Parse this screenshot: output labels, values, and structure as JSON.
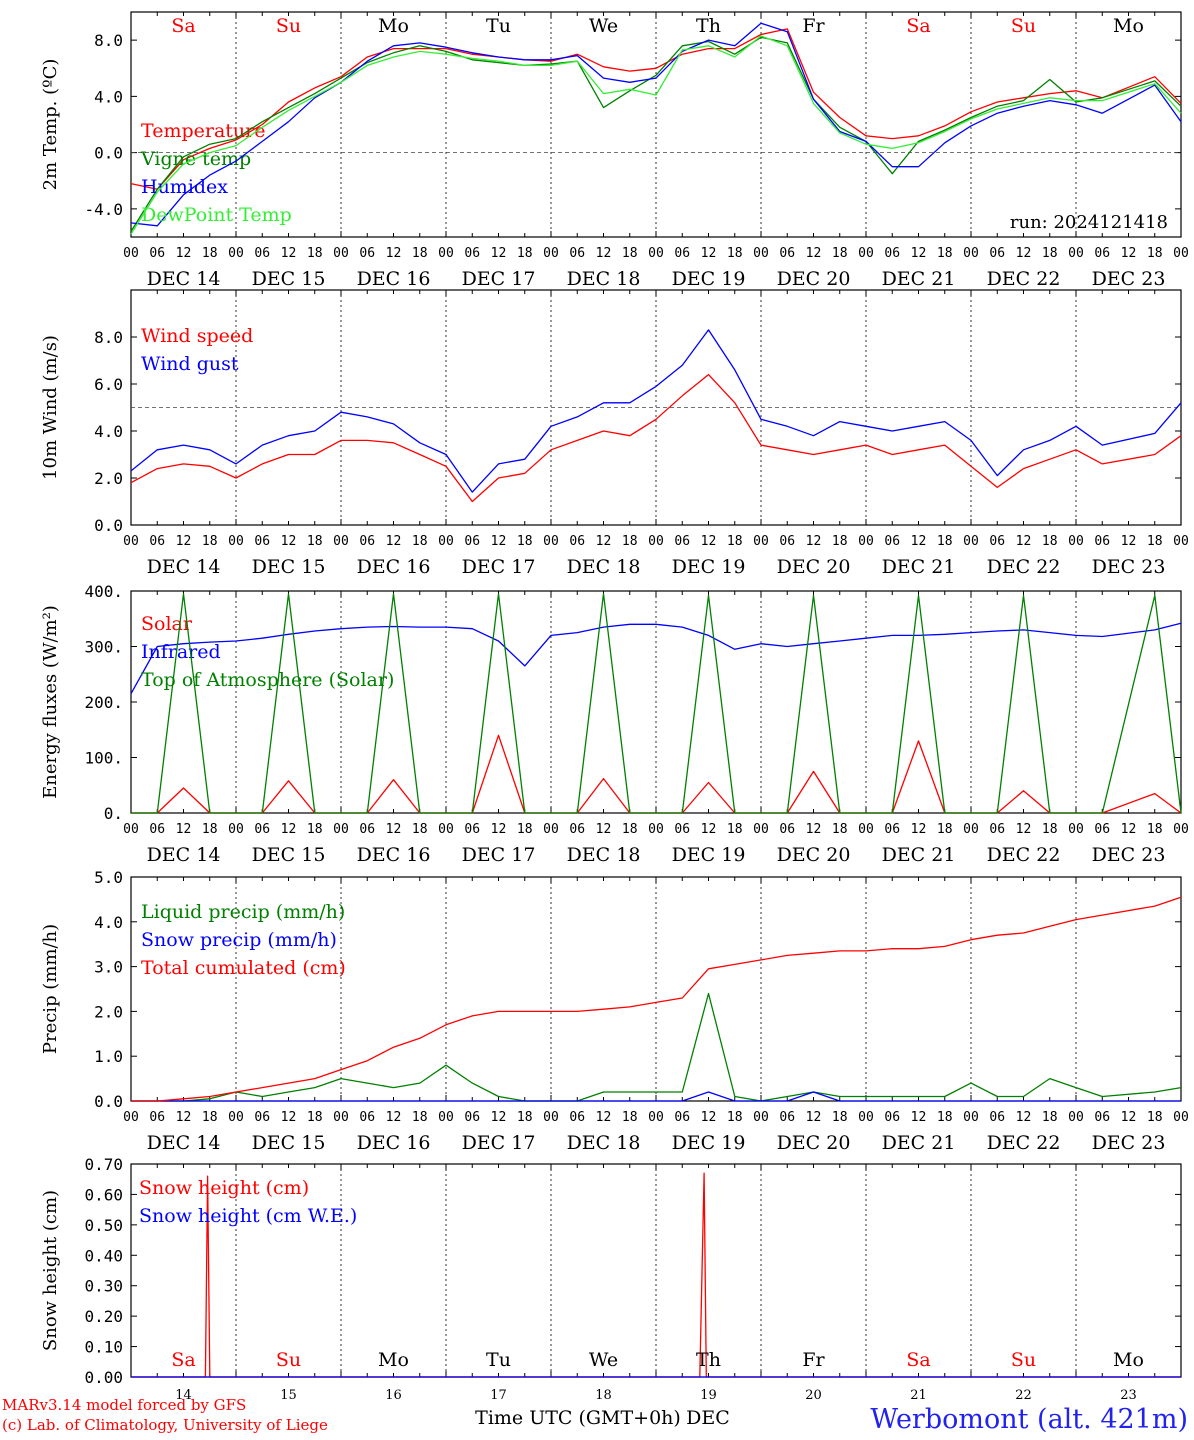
{
  "meta": {
    "run_label": "run: 2024121418",
    "credits_line1": "MARv3.14 model forced by GFS",
    "credits_line2": "(c) Lab. of Climatology, University of Liege",
    "x_axis_label": "Time UTC (GMT+0h)",
    "month_label": "DEC",
    "station": "Werbomont (alt. 421m)",
    "colors": {
      "red": "#ff0000",
      "green": "#008000",
      "blue": "#0000ff",
      "lightgreen": "#33ee33",
      "frame": "#000000"
    }
  },
  "axis": {
    "days": [
      "DEC 14",
      "DEC 15",
      "DEC 16",
      "DEC 17",
      "DEC 18",
      "DEC 19",
      "DEC 20",
      "DEC 21",
      "DEC 22",
      "DEC 23"
    ],
    "hour_ticks": [
      "00",
      "06",
      "12",
      "18"
    ],
    "end_tick": "00",
    "weekdays": [
      "Sa",
      "Su",
      "Mo",
      "Tu",
      "We",
      "Th",
      "Fr",
      "Sa",
      "Su",
      "Mo"
    ],
    "weekday_colors": [
      "#ff0000",
      "#ff0000",
      "#000000",
      "#000000",
      "#000000",
      "#000000",
      "#000000",
      "#ff0000",
      "#ff0000",
      "#000000"
    ],
    "bottom_day_numbers": [
      "14",
      "15",
      "16",
      "17",
      "18",
      "19",
      "20",
      "21",
      "22",
      "23"
    ]
  },
  "chart_data": [
    {
      "type": "line",
      "ylabel": "2m Temp. (ºC)",
      "ylim": [
        -6,
        10
      ],
      "yticks": [
        "-4.0",
        "0.0",
        "4.0",
        "8.0"
      ],
      "reference_line": 0,
      "x": [
        0,
        6,
        12,
        18,
        24,
        30,
        36,
        42,
        48,
        54,
        60,
        66,
        72,
        78,
        84,
        90,
        96,
        102,
        108,
        114,
        120,
        126,
        132,
        138,
        144,
        150,
        156,
        162,
        168,
        174,
        180,
        186,
        192,
        198,
        204,
        210,
        216,
        222,
        234,
        240
      ],
      "series": [
        {
          "name": "Temperature",
          "color": "#ff0000",
          "values": [
            -2.2,
            -2.6,
            -0.5,
            0.3,
            0.9,
            2.0,
            3.6,
            4.6,
            5.4,
            6.8,
            7.4,
            7.4,
            7.4,
            7.0,
            6.8,
            6.6,
            6.5,
            7.0,
            6.1,
            5.8,
            6.0,
            7.0,
            7.4,
            7.4,
            8.4,
            8.8,
            4.3,
            2.5,
            1.2,
            1.0,
            1.2,
            1.9,
            2.9,
            3.6,
            3.9,
            4.2,
            4.4,
            3.9,
            5.4,
            3.5
          ]
        },
        {
          "name": "Vigne temp",
          "color": "#008000",
          "values": [
            -5.6,
            -2.6,
            -0.3,
            0.6,
            1.0,
            2.2,
            3.2,
            4.2,
            5.3,
            6.4,
            7.1,
            7.6,
            7.2,
            6.6,
            6.4,
            6.2,
            6.3,
            6.5,
            3.2,
            4.4,
            5.5,
            7.6,
            7.9,
            7.0,
            8.2,
            7.8,
            3.8,
            1.8,
            0.8,
            -1.5,
            0.8,
            1.6,
            2.5,
            3.3,
            3.7,
            5.2,
            3.6,
            3.9,
            5.1,
            3.3
          ]
        },
        {
          "name": "Humidex",
          "color": "#0000ff",
          "values": [
            -5.0,
            -5.2,
            -3.0,
            -1.6,
            -0.6,
            0.8,
            2.2,
            3.9,
            5.0,
            6.5,
            7.6,
            7.8,
            7.5,
            7.1,
            6.8,
            6.6,
            6.6,
            6.9,
            5.3,
            5.0,
            5.3,
            7.2,
            8.0,
            7.6,
            9.2,
            8.6,
            3.8,
            1.5,
            0.8,
            -1.0,
            -1.0,
            0.7,
            1.9,
            2.8,
            3.3,
            3.7,
            3.4,
            2.8,
            4.8,
            2.2
          ]
        },
        {
          "name": "DewPoint Temp",
          "color": "#33ee33",
          "values": [
            -5.8,
            -2.8,
            -0.8,
            0.0,
            0.5,
            1.8,
            3.0,
            4.0,
            5.0,
            6.2,
            6.8,
            7.2,
            7.0,
            6.7,
            6.5,
            6.2,
            6.2,
            6.5,
            4.2,
            4.5,
            4.1,
            7.3,
            7.6,
            6.8,
            8.3,
            7.6,
            3.5,
            1.4,
            0.6,
            0.3,
            0.7,
            1.5,
            2.4,
            3.1,
            3.5,
            3.9,
            3.7,
            3.7,
            4.9,
            2.8
          ]
        }
      ]
    },
    {
      "type": "line",
      "ylabel": "10m Wind (m/s)",
      "ylim": [
        0,
        10
      ],
      "yticks": [
        "0.0",
        "2.0",
        "4.0",
        "6.0",
        "8.0"
      ],
      "reference_line": 5,
      "x": [
        0,
        6,
        12,
        18,
        24,
        30,
        36,
        42,
        48,
        54,
        60,
        66,
        72,
        78,
        84,
        90,
        96,
        102,
        108,
        114,
        120,
        126,
        132,
        138,
        144,
        150,
        156,
        162,
        168,
        174,
        180,
        186,
        192,
        198,
        204,
        210,
        216,
        222,
        234,
        240
      ],
      "series": [
        {
          "name": "Wind speed",
          "color": "#ff0000",
          "values": [
            1.8,
            2.4,
            2.6,
            2.5,
            2.0,
            2.6,
            3.0,
            3.0,
            3.6,
            3.6,
            3.5,
            3.0,
            2.5,
            1.0,
            2.0,
            2.2,
            3.2,
            3.6,
            4.0,
            3.8,
            4.5,
            5.5,
            6.4,
            5.2,
            3.4,
            3.2,
            3.0,
            3.2,
            3.4,
            3.0,
            3.2,
            3.4,
            2.5,
            1.6,
            2.4,
            2.8,
            3.2,
            2.6,
            3.0,
            3.8
          ]
        },
        {
          "name": "Wind gust",
          "color": "#0000ff",
          "values": [
            2.3,
            3.2,
            3.4,
            3.2,
            2.6,
            3.4,
            3.8,
            4.0,
            4.8,
            4.6,
            4.3,
            3.5,
            3.0,
            1.4,
            2.6,
            2.8,
            4.2,
            4.6,
            5.2,
            5.2,
            5.9,
            6.8,
            8.3,
            6.6,
            4.5,
            4.2,
            3.8,
            4.4,
            4.2,
            4.0,
            4.2,
            4.4,
            3.6,
            2.1,
            3.2,
            3.6,
            4.2,
            3.4,
            3.9,
            5.2
          ]
        }
      ]
    },
    {
      "type": "line",
      "ylabel": "Energy fluxes (W/m²)",
      "ylim": [
        0,
        400
      ],
      "yticks": [
        "0.",
        "100.",
        "200.",
        "300.",
        "400."
      ],
      "x": [
        0,
        6,
        12,
        18,
        24,
        30,
        36,
        42,
        48,
        54,
        60,
        66,
        72,
        78,
        84,
        90,
        96,
        102,
        108,
        114,
        120,
        126,
        132,
        138,
        144,
        150,
        156,
        162,
        168,
        174,
        180,
        186,
        192,
        198,
        204,
        210,
        216,
        222,
        234,
        240
      ],
      "series": [
        {
          "name": "Solar",
          "color": "#ff0000",
          "values": [
            0,
            0,
            45,
            0,
            0,
            0,
            58,
            0,
            0,
            0,
            60,
            0,
            0,
            0,
            140,
            0,
            0,
            0,
            62,
            0,
            0,
            0,
            55,
            0,
            0,
            0,
            75,
            0,
            0,
            0,
            130,
            0,
            0,
            0,
            40,
            0,
            0,
            0,
            35,
            0
          ]
        },
        {
          "name": "Infrared",
          "color": "#0000ff",
          "values": [
            215,
            300,
            305,
            308,
            310,
            315,
            322,
            328,
            332,
            335,
            336,
            335,
            335,
            332,
            310,
            265,
            320,
            325,
            335,
            340,
            340,
            335,
            320,
            295,
            305,
            300,
            305,
            310,
            315,
            320,
            320,
            322,
            325,
            328,
            330,
            325,
            320,
            318,
            330,
            342
          ]
        },
        {
          "name": "Top of Atmosphere (Solar)",
          "color": "#008000",
          "values": [
            0,
            0,
            395,
            0,
            0,
            0,
            395,
            0,
            0,
            0,
            395,
            0,
            0,
            0,
            395,
            0,
            0,
            0,
            395,
            0,
            0,
            0,
            392,
            0,
            0,
            0,
            392,
            0,
            0,
            0,
            392,
            0,
            0,
            0,
            392,
            0,
            0,
            0,
            392,
            0
          ]
        }
      ]
    },
    {
      "type": "line",
      "ylabel": "Precip (mm/h)",
      "ylim": [
        0,
        5
      ],
      "yticks": [
        "0.0",
        "1.0",
        "2.0",
        "3.0",
        "4.0",
        "5.0"
      ],
      "x": [
        0,
        6,
        12,
        18,
        24,
        30,
        36,
        42,
        48,
        54,
        60,
        66,
        72,
        78,
        84,
        90,
        96,
        102,
        108,
        114,
        120,
        126,
        132,
        138,
        144,
        150,
        156,
        162,
        168,
        174,
        180,
        186,
        192,
        198,
        204,
        210,
        216,
        222,
        234,
        240
      ],
      "series": [
        {
          "name": "Liquid precip (mm/h)",
          "color": "#008000",
          "values": [
            0,
            0,
            0,
            0.05,
            0.2,
            0.1,
            0.2,
            0.3,
            0.5,
            0.4,
            0.3,
            0.4,
            0.8,
            0.4,
            0.1,
            0,
            0,
            0,
            0.2,
            0.2,
            0.2,
            0.2,
            2.4,
            0.1,
            0,
            0.1,
            0.2,
            0.1,
            0.1,
            0.1,
            0.1,
            0.1,
            0.4,
            0.1,
            0.1,
            0.5,
            0.3,
            0.1,
            0.2,
            0.3
          ]
        },
        {
          "name": "Snow precip (mm/h)",
          "color": "#0000ff",
          "values": [
            0,
            0,
            0,
            0,
            0,
            0,
            0,
            0,
            0,
            0,
            0,
            0,
            0,
            0,
            0,
            0,
            0,
            0,
            0,
            0,
            0,
            0,
            0.2,
            0,
            0,
            0,
            0.2,
            0,
            0,
            0,
            0,
            0,
            0,
            0,
            0,
            0,
            0,
            0,
            0,
            0
          ]
        },
        {
          "name": "Total cumulated (cm)",
          "color": "#ff0000",
          "values": [
            0,
            0,
            0.05,
            0.1,
            0.2,
            0.3,
            0.4,
            0.5,
            0.7,
            0.9,
            1.2,
            1.4,
            1.7,
            1.9,
            2.0,
            2.0,
            2.0,
            2.0,
            2.05,
            2.1,
            2.2,
            2.3,
            2.95,
            3.05,
            3.15,
            3.25,
            3.3,
            3.35,
            3.35,
            3.4,
            3.4,
            3.45,
            3.6,
            3.7,
            3.75,
            3.9,
            4.05,
            4.15,
            4.35,
            4.55
          ]
        }
      ]
    },
    {
      "type": "line",
      "ylabel": "Snow height (cm)",
      "ylim": [
        0,
        0.7
      ],
      "yticks": [
        "0.00",
        "0.10",
        "0.20",
        "0.30",
        "0.40",
        "0.50",
        "0.60",
        "0.70"
      ],
      "x": [
        0,
        17,
        17.5,
        18,
        130,
        131,
        131.5,
        240
      ],
      "series": [
        {
          "name": "Snow height (cm)",
          "color": "#ff0000",
          "values": [
            0,
            0,
            0.66,
            0,
            0,
            0.67,
            0,
            0
          ]
        },
        {
          "name": "Snow height (cm W.E.)",
          "color": "#0000ff",
          "values": [
            0,
            0,
            0,
            0,
            0,
            0,
            0,
            0
          ]
        }
      ]
    }
  ]
}
